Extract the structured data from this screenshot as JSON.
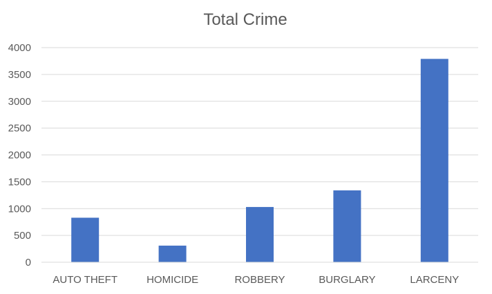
{
  "chart_data": {
    "type": "bar",
    "title": "Total Crime",
    "xlabel": "",
    "ylabel": "",
    "categories": [
      "AUTO THEFT",
      "HOMICIDE",
      "ROBBERY",
      "BURGLARY",
      "LARCENY"
    ],
    "values": [
      830,
      310,
      1030,
      1340,
      3790
    ],
    "ylim": [
      0,
      4000
    ],
    "yticks": [
      0,
      500,
      1000,
      1500,
      2000,
      2500,
      3000,
      3500,
      4000
    ],
    "grid": true,
    "legend": "none",
    "bar_color": "#4472c4"
  }
}
